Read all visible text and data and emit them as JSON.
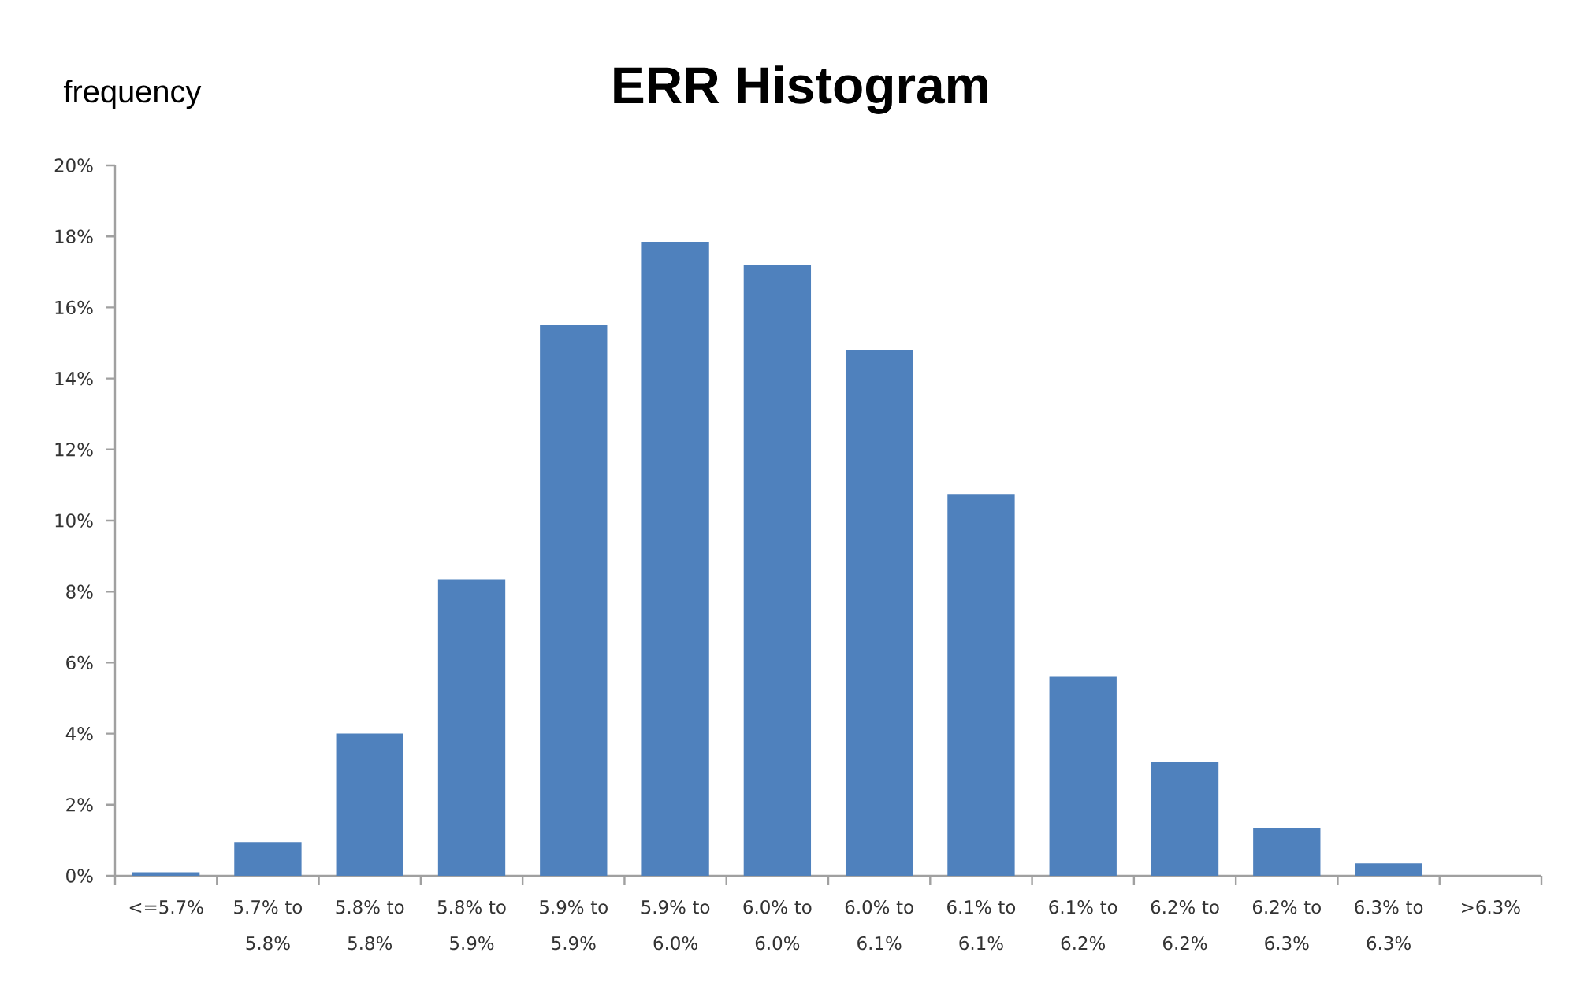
{
  "chart_data": {
    "type": "bar",
    "title": "ERR Histogram",
    "ylabel": "frequency",
    "categories": [
      "<=5.7%",
      "5.7% to 5.8%",
      "5.8% to 5.8%",
      "5.8% to 5.9%",
      "5.9% to 5.9%",
      "5.9% to 6.0%",
      "6.0% to 6.0%",
      "6.0% to 6.1%",
      "6.1% to 6.1%",
      "6.1% to 6.2%",
      "6.2% to 6.2%",
      "6.2% to 6.3%",
      "6.3% to 6.3%",
      ">6.3%"
    ],
    "values": [
      0.1,
      0.95,
      4.0,
      8.35,
      15.5,
      17.85,
      17.2,
      14.8,
      10.75,
      5.6,
      3.2,
      1.35,
      0.35,
      0
    ],
    "color": "#4f81bd",
    "ylim": [
      0,
      20
    ],
    "yticks": [
      {
        "value": 0,
        "label": "0%"
      },
      {
        "value": 2,
        "label": "2%"
      },
      {
        "value": 4,
        "label": "4%"
      },
      {
        "value": 6,
        "label": "6%"
      },
      {
        "value": 8,
        "label": "8%"
      },
      {
        "value": 10,
        "label": "10%"
      },
      {
        "value": 12,
        "label": "12%"
      },
      {
        "value": 14,
        "label": "14%"
      },
      {
        "value": 16,
        "label": "16%"
      },
      {
        "value": 18,
        "label": "18%"
      },
      {
        "value": 20,
        "label": "20%"
      }
    ]
  }
}
